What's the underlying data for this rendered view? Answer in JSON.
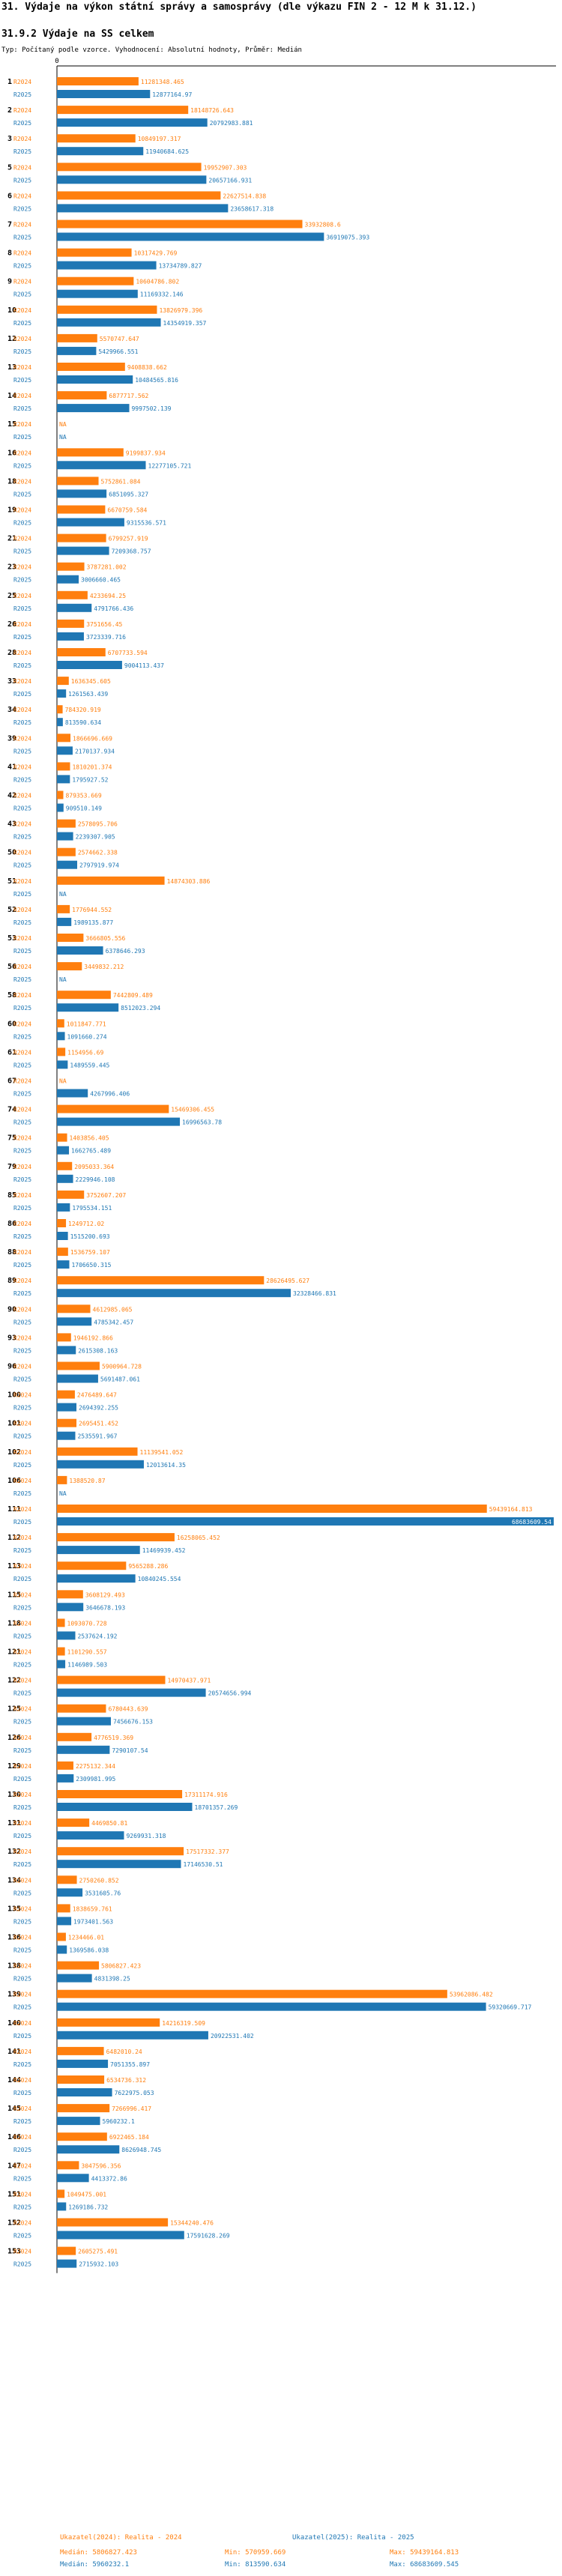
{
  "header": {
    "title": "31. Výdaje na výkon státní správy a samosprávy (dle výkazu FIN 2 - 12 M k 31.12.)",
    "subtitle": "31.9.2 Výdaje na SS celkem",
    "type_line": "Typ: Počítaný podle vzorce. Vyhodnocení: Absolutní hodnoty, Průměr: Medián"
  },
  "colors": {
    "r2024": "#ff7f0e",
    "r2025": "#1f77b4",
    "axis": "#000000"
  },
  "chart_data": {
    "type": "bar",
    "orientation": "horizontal",
    "series_names": [
      "R2024",
      "R2025"
    ],
    "axis_zero_label": "0",
    "xlim": [
      0,
      69000000
    ],
    "missing_label": "NA",
    "categories": [
      "1",
      "2",
      "3",
      "5",
      "6",
      "7",
      "8",
      "9",
      "10",
      "12",
      "13",
      "14",
      "15",
      "16",
      "18",
      "19",
      "21",
      "23",
      "25",
      "26",
      "28",
      "33",
      "34",
      "39",
      "41",
      "42",
      "43",
      "50",
      "51",
      "52",
      "53",
      "56",
      "58",
      "60",
      "61",
      "67",
      "74",
      "75",
      "79",
      "85",
      "86",
      "88",
      "89",
      "90",
      "93",
      "96",
      "100",
      "101",
      "102",
      "106",
      "111",
      "112",
      "113",
      "115",
      "118",
      "121",
      "122",
      "125",
      "126",
      "129",
      "130",
      "131",
      "132",
      "134",
      "135",
      "136",
      "138",
      "139",
      "140",
      "141",
      "144",
      "145",
      "146",
      "147",
      "151",
      "152",
      "153"
    ],
    "series": [
      {
        "name": "R2024",
        "values": [
          11281348.465,
          18148726.643,
          10849197.317,
          19952907.303,
          22627514.838,
          33932808.6,
          10317429.769,
          10604786.802,
          13826979.396,
          5570747.647,
          9408838.662,
          6877717.562,
          null,
          9199837.934,
          5752861.084,
          6670759.584,
          6799257.919,
          3787281.002,
          4233694.25,
          3751656.45,
          6707733.594,
          1636345.605,
          784320.919,
          1866696.669,
          1810201.374,
          879353.669,
          2578095.706,
          2574662.338,
          14874303.886,
          1776944.552,
          3666805.556,
          3449832.212,
          7442809.489,
          1011847.771,
          1154956.69,
          null,
          15469306.455,
          1403856.405,
          2095033.364,
          3752607.207,
          1249712.02,
          1536759.107,
          28626495.627,
          4612985.065,
          1946192.866,
          5900964.728,
          2476489.647,
          2695451.452,
          11139541.052,
          1388520.87,
          59439164.813,
          16258065.452,
          9565288.286,
          3608129.493,
          1093070.728,
          1101290.557,
          14970437.971,
          6780443.639,
          4776519.369,
          2275132.344,
          17311174.916,
          4469850.81,
          17517332.377,
          2750260.852,
          1838659.761,
          1234466.01,
          5806827.423,
          53962086.482,
          14216319.509,
          6482010.24,
          6534736.312,
          7266996.417,
          6922465.184,
          3047596.356,
          1049475.001,
          15344240.476,
          2605275.491
        ]
      },
      {
        "name": "R2025",
        "values": [
          12877164.97,
          20792983.881,
          11940684.625,
          20657166.931,
          23658617.318,
          36919075.393,
          13734789.827,
          11169332.146,
          14354919.357,
          5429966.551,
          10484565.816,
          9997502.139,
          null,
          12277105.721,
          6851095.327,
          9315536.571,
          7209368.757,
          3006660.465,
          4791766.436,
          3723339.716,
          9004113.437,
          1261563.439,
          813590.634,
          2170137.934,
          1795927.52,
          909510.149,
          2239307.905,
          2797919.974,
          null,
          1989135.877,
          6378646.293,
          null,
          8512023.294,
          1091660.274,
          1489559.445,
          4267996.406,
          16996563.78,
          1662765.489,
          2229946.108,
          1795534.151,
          1515200.693,
          1706650.315,
          32328466.831,
          4785342.457,
          2615308.163,
          5691487.061,
          2694392.255,
          2535591.967,
          12013614.35,
          null,
          68683609.54,
          11469939.452,
          10840245.554,
          3646678.193,
          2537624.192,
          1146989.503,
          20574656.994,
          7456676.153,
          7290107.54,
          2309981.995,
          18701357.269,
          9269931.318,
          17146530.51,
          3531605.76,
          1973401.563,
          1369586.038,
          4831398.25,
          59320669.717,
          20922531.402,
          7051355.897,
          7622975.053,
          5960232.1,
          8626948.745,
          4413372.86,
          1269186.732,
          17591628.269,
          2715932.103
        ]
      }
    ],
    "stats": {
      "r2024": {
        "label": "Ukazatel(2024): Realita - 2024",
        "median": "Medián: 5806827.423",
        "min": "Min: 570959.669",
        "max": "Max: 59439164.813"
      },
      "r2025": {
        "label": "Ukazatel(2025): Realita - 2025",
        "median": "Medián: 5960232.1",
        "min": "Min: 813590.634",
        "max": "Max: 68683609.545"
      }
    }
  }
}
